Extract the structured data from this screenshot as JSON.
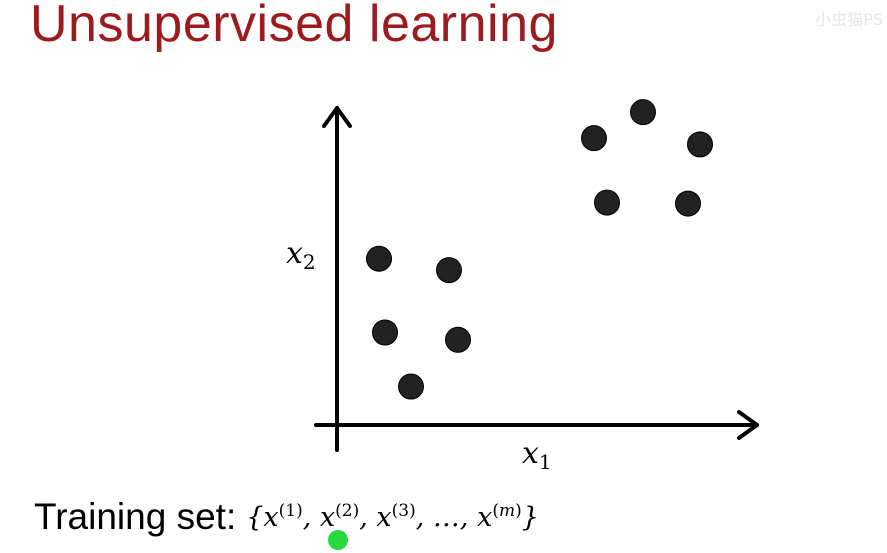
{
  "title": "Unsupervised learning",
  "watermark": "小虫猫PS",
  "plot": {
    "x_label": "x",
    "x_label_sub": "1",
    "y_label": "x",
    "y_label_sub": "2"
  },
  "chart_data": {
    "type": "scatter",
    "title": "",
    "xlabel": "x1",
    "ylabel": "x2",
    "xlim": [
      0,
      420
    ],
    "ylim": [
      0,
      305
    ],
    "grid": false,
    "legend": "none",
    "series": [
      {
        "points": [
          [
            42,
            160
          ],
          [
            112,
            149
          ],
          [
            48,
            89
          ],
          [
            121,
            82
          ],
          [
            74,
            37
          ],
          [
            257,
            276
          ],
          [
            306,
            301
          ],
          [
            363,
            270
          ],
          [
            270,
            214
          ],
          [
            351,
            213
          ]
        ]
      }
    ]
  },
  "training_set": {
    "label": "Training set:",
    "open_brace": "{",
    "close_brace": "}",
    "var": "x",
    "ellipsis": "…",
    "items": [
      "(1)",
      "(2)",
      "(3)"
    ],
    "last_open": "(",
    "last_index": "m",
    "last_close": ")"
  },
  "colors": {
    "title": "#9b1b1e",
    "points": "#222222",
    "axes": "#000000",
    "cursor": "#27d93f"
  }
}
